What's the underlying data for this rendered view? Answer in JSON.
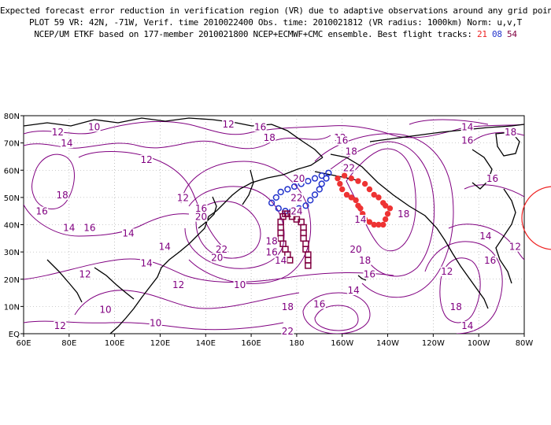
{
  "title": {
    "line1": "Expected forecast error reduction in verification region (VR) due to adaptive observations around any grid point.",
    "line2": "PLOT 59 VR: 42N, -71W, Verif. time 2010022400 Obs. time: 2010021812 (VR radius: 1000km) Norm: u,v,T",
    "line3_prefix": "NCEP/UM ETKF based on 177-member 2010021800 NCEP+ECMWF+CMC ensemble. Best flight tracks:",
    "track_ids": [
      "21",
      "08",
      "54"
    ]
  },
  "colors": {
    "contour": "#800080",
    "track_21": "#ee3333",
    "track_08": "#2233cc",
    "track_54": "#800040",
    "verification_circle": "#ee2222",
    "coastline": "#000000"
  },
  "map": {
    "lon_ticks": [
      "60E",
      "80E",
      "100E",
      "120E",
      "140E",
      "160E",
      "180",
      "160W",
      "140W",
      "120W",
      "100W",
      "80W"
    ],
    "lat_ticks": [
      "EQ",
      "10N",
      "20N",
      "30N",
      "40N",
      "50N",
      "60N",
      "70N",
      "80N"
    ],
    "lon_range": [
      60,
      280
    ],
    "lat_range": [
      0,
      80
    ],
    "grid": "dotted",
    "verification_region": {
      "lat": 42,
      "lon": -71,
      "radius_km": 1000
    }
  },
  "contour_labels": [
    {
      "text": "12",
      "lon": 75,
      "lat": 73
    },
    {
      "text": "10",
      "lon": 91,
      "lat": 75
    },
    {
      "text": "12",
      "lon": 150,
      "lat": 76
    },
    {
      "text": "16",
      "lon": 164,
      "lat": 75
    },
    {
      "text": "18",
      "lon": 168,
      "lat": 71
    },
    {
      "text": "12",
      "lon": 199,
      "lat": 71
    },
    {
      "text": "14",
      "lon": 79,
      "lat": 69
    },
    {
      "text": "12",
      "lon": 114,
      "lat": 63
    },
    {
      "text": "18",
      "lon": 204,
      "lat": 66
    },
    {
      "text": "16",
      "lon": 200,
      "lat": 70
    },
    {
      "text": "22",
      "lon": 203,
      "lat": 60
    },
    {
      "text": "20",
      "lon": 181,
      "lat": 56
    },
    {
      "text": "14",
      "lon": 255,
      "lat": 75
    },
    {
      "text": "16",
      "lon": 255,
      "lat": 70
    },
    {
      "text": "18",
      "lon": 274,
      "lat": 73
    },
    {
      "text": "16",
      "lon": 266,
      "lat": 56
    },
    {
      "text": "18",
      "lon": 77,
      "lat": 50
    },
    {
      "text": "16",
      "lon": 68,
      "lat": 44
    },
    {
      "text": "14",
      "lon": 80,
      "lat": 38
    },
    {
      "text": "16",
      "lon": 89,
      "lat": 38
    },
    {
      "text": "14",
      "lon": 106,
      "lat": 36
    },
    {
      "text": "12",
      "lon": 130,
      "lat": 49
    },
    {
      "text": "16",
      "lon": 138,
      "lat": 45
    },
    {
      "text": "20",
      "lon": 138,
      "lat": 42
    },
    {
      "text": "22",
      "lon": 180,
      "lat": 49
    },
    {
      "text": "24",
      "lon": 180,
      "lat": 44
    },
    {
      "text": "14",
      "lon": 208,
      "lat": 41
    },
    {
      "text": "18",
      "lon": 227,
      "lat": 43
    },
    {
      "text": "14",
      "lon": 122,
      "lat": 31
    },
    {
      "text": "22",
      "lon": 147,
      "lat": 30
    },
    {
      "text": "20",
      "lon": 145,
      "lat": 27
    },
    {
      "text": "18",
      "lon": 169,
      "lat": 33
    },
    {
      "text": "16",
      "lon": 169,
      "lat": 29
    },
    {
      "text": "14",
      "lon": 173,
      "lat": 26
    },
    {
      "text": "20",
      "lon": 206,
      "lat": 30
    },
    {
      "text": "18",
      "lon": 210,
      "lat": 26
    },
    {
      "text": "16",
      "lon": 212,
      "lat": 21
    },
    {
      "text": "14",
      "lon": 263,
      "lat": 35
    },
    {
      "text": "12",
      "lon": 276,
      "lat": 31
    },
    {
      "text": "16",
      "lon": 265,
      "lat": 26
    },
    {
      "text": "12",
      "lon": 246,
      "lat": 22
    },
    {
      "text": "14",
      "lon": 114,
      "lat": 25
    },
    {
      "text": "12",
      "lon": 87,
      "lat": 21
    },
    {
      "text": "12",
      "lon": 128,
      "lat": 17
    },
    {
      "text": "10",
      "lon": 155,
      "lat": 17
    },
    {
      "text": "14",
      "lon": 205,
      "lat": 15
    },
    {
      "text": "16",
      "lon": 190,
      "lat": 10
    },
    {
      "text": "18",
      "lon": 176,
      "lat": 9
    },
    {
      "text": "18",
      "lon": 250,
      "lat": 9
    },
    {
      "text": "14",
      "lon": 255,
      "lat": 2
    },
    {
      "text": "10",
      "lon": 96,
      "lat": 8
    },
    {
      "text": "10",
      "lon": 118,
      "lat": 3
    },
    {
      "text": "12",
      "lon": 76,
      "lat": 2
    },
    {
      "text": "22",
      "lon": 176,
      "lat": 0
    }
  ],
  "flight_tracks": [
    {
      "id": "21",
      "marker": "filled-circle",
      "points": [
        [
          198,
          57
        ],
        [
          199,
          55
        ],
        [
          200,
          53
        ],
        [
          202,
          51
        ],
        [
          204,
          50
        ],
        [
          206,
          49
        ],
        [
          207,
          47
        ],
        [
          208,
          46
        ],
        [
          209,
          44
        ],
        [
          210,
          42
        ],
        [
          212,
          41
        ],
        [
          214,
          40
        ],
        [
          216,
          40
        ],
        [
          218,
          40
        ],
        [
          219,
          42
        ],
        [
          220,
          44
        ],
        [
          221,
          46
        ],
        [
          219,
          47
        ],
        [
          218,
          48
        ],
        [
          216,
          50
        ],
        [
          214,
          51
        ],
        [
          212,
          53
        ],
        [
          210,
          55
        ],
        [
          207,
          56
        ],
        [
          204,
          57
        ],
        [
          201,
          58
        ]
      ]
    },
    {
      "id": "08",
      "marker": "open-circle",
      "points": [
        [
          169,
          48
        ],
        [
          171,
          50
        ],
        [
          173,
          52
        ],
        [
          176,
          53
        ],
        [
          179,
          54
        ],
        [
          182,
          55
        ],
        [
          185,
          56
        ],
        [
          188,
          57
        ],
        [
          191,
          58
        ],
        [
          194,
          59
        ],
        [
          193,
          57
        ],
        [
          191,
          55
        ],
        [
          190,
          53
        ],
        [
          188,
          51
        ],
        [
          186,
          49
        ],
        [
          184,
          47
        ],
        [
          181,
          46
        ],
        [
          178,
          45
        ],
        [
          175,
          45
        ],
        [
          172,
          46
        ]
      ]
    },
    {
      "id": "54",
      "marker": "open-square",
      "points": [
        [
          177,
          27
        ],
        [
          176,
          29
        ],
        [
          175,
          31
        ],
        [
          174,
          33
        ],
        [
          173,
          35
        ],
        [
          173,
          37
        ],
        [
          173,
          39
        ],
        [
          173,
          41
        ],
        [
          174,
          43
        ],
        [
          175,
          44
        ],
        [
          176,
          44
        ],
        [
          178,
          43
        ],
        [
          180,
          42
        ],
        [
          182,
          41
        ],
        [
          183,
          39
        ],
        [
          183,
          37
        ],
        [
          183,
          35
        ],
        [
          184,
          33
        ],
        [
          184,
          31
        ],
        [
          185,
          29
        ],
        [
          185,
          27
        ],
        [
          185,
          25
        ]
      ]
    }
  ]
}
